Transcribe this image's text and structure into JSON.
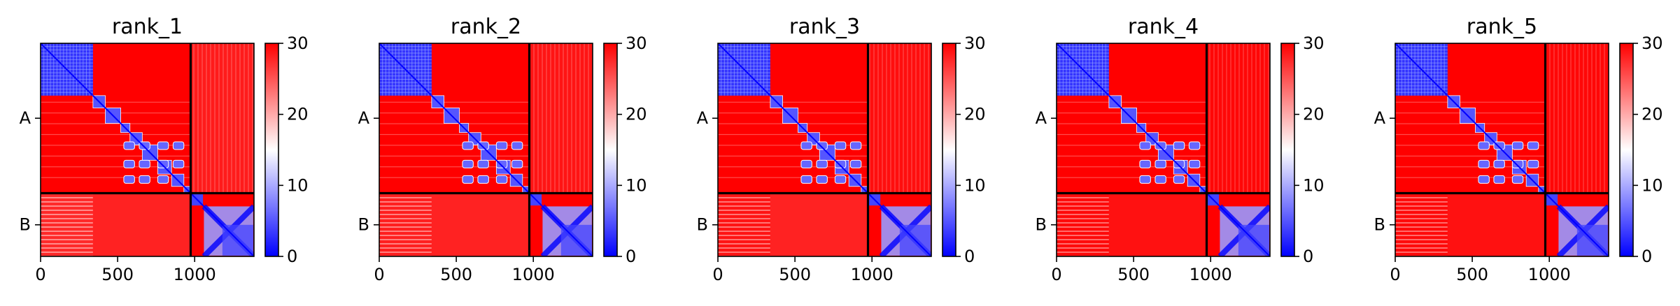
{
  "chart_data": [
    {
      "type": "heatmap",
      "title": "rank_1",
      "x_ticks": [
        "0",
        "500",
        "1000"
      ],
      "x_tick_values": [
        0,
        500,
        1000
      ],
      "y_ticks": [
        "A",
        "B"
      ],
      "chains": [
        {
          "name": "A",
          "start": 0,
          "end": 974
        },
        {
          "name": "B",
          "start": 974,
          "end": 1385
        }
      ],
      "xlim": [
        0,
        1385
      ],
      "colorbar": {
        "min": 0,
        "max": 30,
        "ticks": [
          "0",
          "10",
          "20",
          "30"
        ],
        "colors": [
          "#0000ff",
          "#ffffff",
          "#ff0000"
        ]
      },
      "low_error_blocks": [
        {
          "x": [
            0,
            340
          ],
          "y": [
            0,
            340
          ],
          "value": 3
        },
        {
          "x": [
            340,
            974
          ],
          "y": [
            340,
            974
          ],
          "value": 6,
          "pattern": "diagonal-domains"
        },
        {
          "x": [
            974,
            1385
          ],
          "y": [
            974,
            1385
          ],
          "value": 5,
          "pattern": "diagonal-x"
        }
      ],
      "off_diagonal": {
        "A_vs_B": 26,
        "B_vs_A_first_domain": 22,
        "B_vs_A_rest": 28
      }
    },
    {
      "type": "heatmap",
      "title": "rank_2",
      "x_ticks": [
        "0",
        "500",
        "1000"
      ],
      "x_tick_values": [
        0,
        500,
        1000
      ],
      "y_ticks": [
        "A",
        "B"
      ],
      "chains": [
        {
          "name": "A",
          "start": 0,
          "end": 974
        },
        {
          "name": "B",
          "start": 974,
          "end": 1385
        }
      ],
      "xlim": [
        0,
        1385
      ],
      "colorbar": {
        "min": 0,
        "max": 30,
        "ticks": [
          "0",
          "10",
          "20",
          "30"
        ],
        "colors": [
          "#0000ff",
          "#ffffff",
          "#ff0000"
        ]
      },
      "low_error_blocks": [
        {
          "x": [
            0,
            340
          ],
          "y": [
            0,
            340
          ],
          "value": 3
        },
        {
          "x": [
            340,
            974
          ],
          "y": [
            340,
            974
          ],
          "value": 6,
          "pattern": "diagonal-domains"
        },
        {
          "x": [
            974,
            1385
          ],
          "y": [
            974,
            1385
          ],
          "value": 5,
          "pattern": "diagonal-x"
        }
      ],
      "off_diagonal": {
        "A_vs_B": 27,
        "B_vs_A_first_domain": 24,
        "B_vs_A_rest": 28
      }
    },
    {
      "type": "heatmap",
      "title": "rank_3",
      "x_ticks": [
        "0",
        "500",
        "1000"
      ],
      "x_tick_values": [
        0,
        500,
        1000
      ],
      "y_ticks": [
        "A",
        "B"
      ],
      "chains": [
        {
          "name": "A",
          "start": 0,
          "end": 974
        },
        {
          "name": "B",
          "start": 974,
          "end": 1385
        }
      ],
      "xlim": [
        0,
        1385
      ],
      "colorbar": {
        "min": 0,
        "max": 30,
        "ticks": [
          "0",
          "10",
          "20",
          "30"
        ],
        "colors": [
          "#0000ff",
          "#ffffff",
          "#ff0000"
        ]
      },
      "low_error_blocks": [
        {
          "x": [
            0,
            340
          ],
          "y": [
            0,
            340
          ],
          "value": 3
        },
        {
          "x": [
            340,
            974
          ],
          "y": [
            340,
            974
          ],
          "value": 6,
          "pattern": "diagonal-domains"
        },
        {
          "x": [
            974,
            1385
          ],
          "y": [
            974,
            1385
          ],
          "value": 5,
          "pattern": "diagonal-x"
        }
      ],
      "off_diagonal": {
        "A_vs_B": 28,
        "B_vs_A_first_domain": 26,
        "B_vs_A_rest": 28
      }
    },
    {
      "type": "heatmap",
      "title": "rank_4",
      "x_ticks": [
        "0",
        "500",
        "1000"
      ],
      "x_tick_values": [
        0,
        500,
        1000
      ],
      "y_ticks": [
        "A",
        "B"
      ],
      "chains": [
        {
          "name": "A",
          "start": 0,
          "end": 974
        },
        {
          "name": "B",
          "start": 974,
          "end": 1385
        }
      ],
      "xlim": [
        0,
        1385
      ],
      "colorbar": {
        "min": 0,
        "max": 30,
        "ticks": [
          "0",
          "10",
          "20",
          "30"
        ],
        "colors": [
          "#0000ff",
          "#ffffff",
          "#ff0000"
        ]
      },
      "low_error_blocks": [
        {
          "x": [
            0,
            340
          ],
          "y": [
            0,
            340
          ],
          "value": 3
        },
        {
          "x": [
            340,
            974
          ],
          "y": [
            340,
            974
          ],
          "value": 6,
          "pattern": "diagonal-domains"
        },
        {
          "x": [
            974,
            1385
          ],
          "y": [
            974,
            1385
          ],
          "value": 5,
          "pattern": "diagonal-x"
        }
      ],
      "off_diagonal": {
        "A_vs_B": 29,
        "B_vs_A_first_domain": 28,
        "B_vs_A_rest": 29
      }
    },
    {
      "type": "heatmap",
      "title": "rank_5",
      "x_ticks": [
        "0",
        "500",
        "1000"
      ],
      "x_tick_values": [
        0,
        500,
        1000
      ],
      "y_ticks": [
        "A",
        "B"
      ],
      "chains": [
        {
          "name": "A",
          "start": 0,
          "end": 974
        },
        {
          "name": "B",
          "start": 974,
          "end": 1385
        }
      ],
      "xlim": [
        0,
        1385
      ],
      "colorbar": {
        "min": 0,
        "max": 30,
        "ticks": [
          "0",
          "10",
          "20",
          "30"
        ],
        "colors": [
          "#0000ff",
          "#ffffff",
          "#ff0000"
        ]
      },
      "low_error_blocks": [
        {
          "x": [
            0,
            340
          ],
          "y": [
            0,
            340
          ],
          "value": 3
        },
        {
          "x": [
            340,
            974
          ],
          "y": [
            340,
            974
          ],
          "value": 6,
          "pattern": "diagonal-domains"
        },
        {
          "x": [
            974,
            1385
          ],
          "y": [
            974,
            1385
          ],
          "value": 5,
          "pattern": "diagonal-x"
        }
      ],
      "off_diagonal": {
        "A_vs_B": 29,
        "B_vs_A_first_domain": 28,
        "B_vs_A_rest": 29
      }
    }
  ]
}
